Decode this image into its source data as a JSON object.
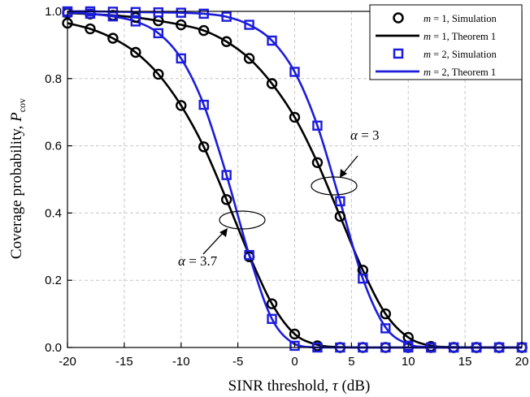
{
  "chart_data": {
    "type": "line",
    "xlabel": "SINR threshold, τ (dB)",
    "xlabel_parts": {
      "main": "SINR threshold, ",
      "symbol": "τ",
      "unit": " (dB)"
    },
    "ylabel": "Coverage probability, P_cov",
    "ylabel_parts": {
      "main": "Coverage probability, ",
      "symbol": "P",
      "subscript": "cov"
    },
    "xlim": [
      -20,
      20
    ],
    "ylim": [
      0,
      1.0
    ],
    "xticks": [
      -20,
      -15,
      -10,
      -5,
      0,
      5,
      10,
      15,
      20
    ],
    "xtick_labels": [
      "-20",
      "-15",
      "-10",
      "-5",
      "0",
      "5",
      "10",
      "15",
      "20"
    ],
    "yticks": [
      0,
      0.2,
      0.4,
      0.6,
      0.8,
      1.0
    ],
    "ytick_labels": [
      "0.0",
      "0.2",
      "0.4",
      "0.6",
      "0.8",
      "1.0"
    ],
    "grid": true,
    "legend_position": "top-right",
    "legend": [
      {
        "label": "m = 1, Simulation",
        "var": "m",
        "rest": " = 1, Simulation",
        "style": "circle",
        "color": "#000000"
      },
      {
        "label": "m = 1, Theorem 1",
        "var": "m",
        "rest": " = 1, Theorem 1",
        "style": "line",
        "color": "#000000"
      },
      {
        "label": "m = 2, Simulation",
        "var": "m",
        "rest": " = 2, Simulation",
        "style": "square",
        "color": "#1c1cdc"
      },
      {
        "label": "m = 2, Theorem 1",
        "var": "m",
        "rest": " = 2, Theorem 1",
        "style": "line",
        "color": "#1c1cdc"
      }
    ],
    "annotations": [
      {
        "label": "α = 3",
        "symbol": "α",
        "rest": " = 3"
      },
      {
        "label": "α = 3.7",
        "symbol": "α",
        "rest": " = 3.7"
      }
    ],
    "series": [
      {
        "legend": "m = 1, Theorem 1",
        "alpha": 3,
        "kind": "line",
        "color": "#000000",
        "x": [
          -20,
          -18,
          -16,
          -14,
          -12,
          -10,
          -8,
          -6,
          -4,
          -2,
          0,
          2,
          4,
          6,
          8,
          10,
          12,
          14,
          16,
          18,
          20
        ],
        "y": [
          0.995,
          0.992,
          0.988,
          0.982,
          0.972,
          0.96,
          0.943,
          0.91,
          0.86,
          0.785,
          0.685,
          0.55,
          0.39,
          0.23,
          0.1,
          0.03,
          0.005,
          0.001,
          0.0,
          0.0,
          0.0
        ]
      },
      {
        "legend": "m = 1, Simulation",
        "alpha": 3,
        "kind": "circle",
        "color": "#000000",
        "x": [
          -20,
          -18,
          -16,
          -14,
          -12,
          -10,
          -8,
          -6,
          -4,
          -2,
          0,
          2,
          4,
          6,
          8,
          10,
          12,
          14,
          16,
          18,
          20
        ],
        "y": [
          0.995,
          0.992,
          0.988,
          0.982,
          0.972,
          0.96,
          0.943,
          0.91,
          0.86,
          0.785,
          0.685,
          0.55,
          0.39,
          0.23,
          0.1,
          0.03,
          0.003,
          0.0,
          0.0,
          0.0,
          0.0
        ]
      },
      {
        "legend": "m = 1, Theorem 1",
        "alpha": 3.7,
        "kind": "line",
        "color": "#000000",
        "x": [
          -20,
          -18,
          -16,
          -14,
          -12,
          -10,
          -8,
          -6,
          -4,
          -2,
          0,
          2,
          4,
          6,
          8,
          10,
          12,
          14,
          16,
          18,
          20
        ],
        "y": [
          0.965,
          0.948,
          0.92,
          0.878,
          0.813,
          0.72,
          0.597,
          0.44,
          0.275,
          0.13,
          0.04,
          0.008,
          0.001,
          0.0,
          0.0,
          0.0,
          0.0,
          0.0,
          0.0,
          0.0,
          0.0
        ]
      },
      {
        "legend": "m = 1, Simulation",
        "alpha": 3.7,
        "kind": "circle",
        "color": "#000000",
        "x": [
          -20,
          -18,
          -16,
          -14,
          -12,
          -10,
          -8,
          -6,
          -4,
          -2,
          0,
          2,
          4,
          6,
          8,
          10,
          12,
          14,
          16,
          18,
          20
        ],
        "y": [
          0.965,
          0.948,
          0.92,
          0.878,
          0.813,
          0.72,
          0.597,
          0.44,
          0.27,
          0.13,
          0.04,
          0.005,
          0.0,
          0.0,
          0.0,
          0.0,
          0.0,
          0.0,
          0.0,
          0.0,
          0.0
        ]
      },
      {
        "legend": "m = 2, Theorem 1",
        "alpha": 3,
        "kind": "line",
        "color": "#1c1cdc",
        "x": [
          -20,
          -18,
          -16,
          -14,
          -12,
          -10,
          -8,
          -6,
          -4,
          -2,
          0,
          2,
          4,
          6,
          8,
          10,
          12,
          14,
          16,
          18,
          20
        ],
        "y": [
          1.0,
          1.0,
          0.999,
          0.998,
          0.997,
          0.996,
          0.993,
          0.984,
          0.96,
          0.913,
          0.82,
          0.66,
          0.435,
          0.205,
          0.06,
          0.01,
          0.001,
          0.0,
          0.0,
          0.0,
          0.0
        ]
      },
      {
        "legend": "m = 2, Simulation",
        "alpha": 3,
        "kind": "square",
        "color": "#1c1cdc",
        "x": [
          -20,
          -18,
          -16,
          -14,
          -12,
          -10,
          -8,
          -6,
          -4,
          -2,
          0,
          2,
          4,
          6,
          8,
          10,
          12,
          14,
          16,
          18,
          20
        ],
        "y": [
          1.0,
          1.0,
          0.999,
          0.998,
          0.997,
          0.996,
          0.993,
          0.984,
          0.96,
          0.913,
          0.82,
          0.66,
          0.435,
          0.205,
          0.057,
          0.005,
          0.0,
          0.0,
          0.0,
          0.0,
          0.0
        ]
      },
      {
        "legend": "m = 2, Theorem 1",
        "alpha": 3.7,
        "kind": "line",
        "color": "#1c1cdc",
        "x": [
          -20,
          -18,
          -16,
          -14,
          -12,
          -10,
          -8,
          -6,
          -4,
          -2,
          0,
          2,
          4,
          6,
          8,
          10,
          12,
          14,
          16,
          18,
          20
        ],
        "y": [
          0.997,
          0.993,
          0.985,
          0.97,
          0.935,
          0.86,
          0.722,
          0.513,
          0.275,
          0.085,
          0.01,
          0.0,
          0.0,
          0.0,
          0.0,
          0.0,
          0.0,
          0.0,
          0.0,
          0.0,
          0.0
        ]
      },
      {
        "legend": "m = 2, Simulation",
        "alpha": 3.7,
        "kind": "square",
        "color": "#1c1cdc",
        "x": [
          -20,
          -18,
          -16,
          -14,
          -12,
          -10,
          -8,
          -6,
          -4,
          -2,
          0,
          2,
          4,
          6,
          8,
          10,
          12,
          14,
          16,
          18,
          20
        ],
        "y": [
          0.997,
          0.993,
          0.985,
          0.97,
          0.935,
          0.86,
          0.722,
          0.513,
          0.275,
          0.085,
          0.005,
          0.0,
          0.0,
          0.0,
          0.0,
          0.0,
          0.0,
          0.0,
          0.0,
          0.0,
          0.0
        ]
      }
    ]
  }
}
